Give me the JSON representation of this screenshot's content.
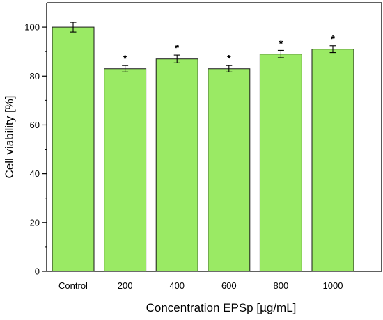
{
  "chart_data": {
    "type": "bar",
    "categories": [
      "Control",
      "200",
      "400",
      "600",
      "800",
      "1000"
    ],
    "values": [
      100,
      83,
      87,
      83,
      89,
      91
    ],
    "errors": [
      2,
      1.3,
      1.6,
      1.3,
      1.5,
      1.4
    ],
    "annotations": [
      "",
      "*",
      "*",
      "*",
      "*",
      "*"
    ],
    "xlabel": "Concentration EPSp [µg/mL]",
    "ylabel": "Cell viability [%]",
    "ylim": [
      0,
      110
    ],
    "yticks": [
      "0",
      "20",
      "40",
      "60",
      "80",
      "100"
    ],
    "grid": false,
    "legend": "none",
    "colors": {
      "bar_fill": "#9aea64",
      "bar_stroke": "#1a1a1a",
      "axis": "#000000"
    }
  }
}
